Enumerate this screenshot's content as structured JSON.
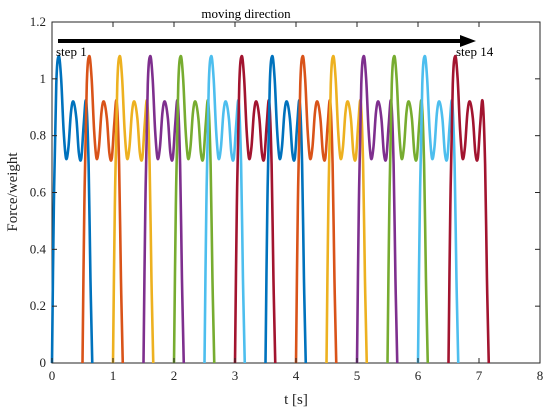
{
  "chart_data": {
    "type": "line",
    "xlabel": "t [s]",
    "ylabel": "Force/weight",
    "xlim": [
      0,
      8
    ],
    "ylim": [
      0,
      1.2
    ],
    "xticks": [
      0,
      1,
      2,
      3,
      4,
      5,
      6,
      7,
      8
    ],
    "yticks": [
      0,
      0.2,
      0.4,
      0.6,
      0.8,
      1,
      1.2
    ],
    "ytick_labels": [
      "0",
      "0.2",
      "0.4",
      "0.6",
      "0.8",
      "1",
      "1.2"
    ],
    "grid": false,
    "step_duration": 0.66,
    "step_interval": 0.5,
    "step_count": 14,
    "profile": {
      "t": [
        0,
        0.03,
        0.07,
        0.11,
        0.15,
        0.19,
        0.23,
        0.27,
        0.31,
        0.35,
        0.4,
        0.44,
        0.48,
        0.52,
        0.56,
        0.6,
        0.63,
        0.66
      ],
      "force": [
        0,
        0.55,
        0.98,
        1.08,
        1.0,
        0.82,
        0.72,
        0.76,
        0.88,
        0.92,
        0.86,
        0.74,
        0.72,
        0.84,
        0.92,
        0.7,
        0.3,
        0
      ]
    },
    "series_colors": [
      "#0072BD",
      "#D95319",
      "#EDB120",
      "#7E2F8E",
      "#77AC30",
      "#4DBEEE",
      "#A2142F"
    ],
    "annotations": {
      "arrow_label": "moving direction",
      "start_label": "step 1",
      "end_label": "step 14"
    }
  }
}
